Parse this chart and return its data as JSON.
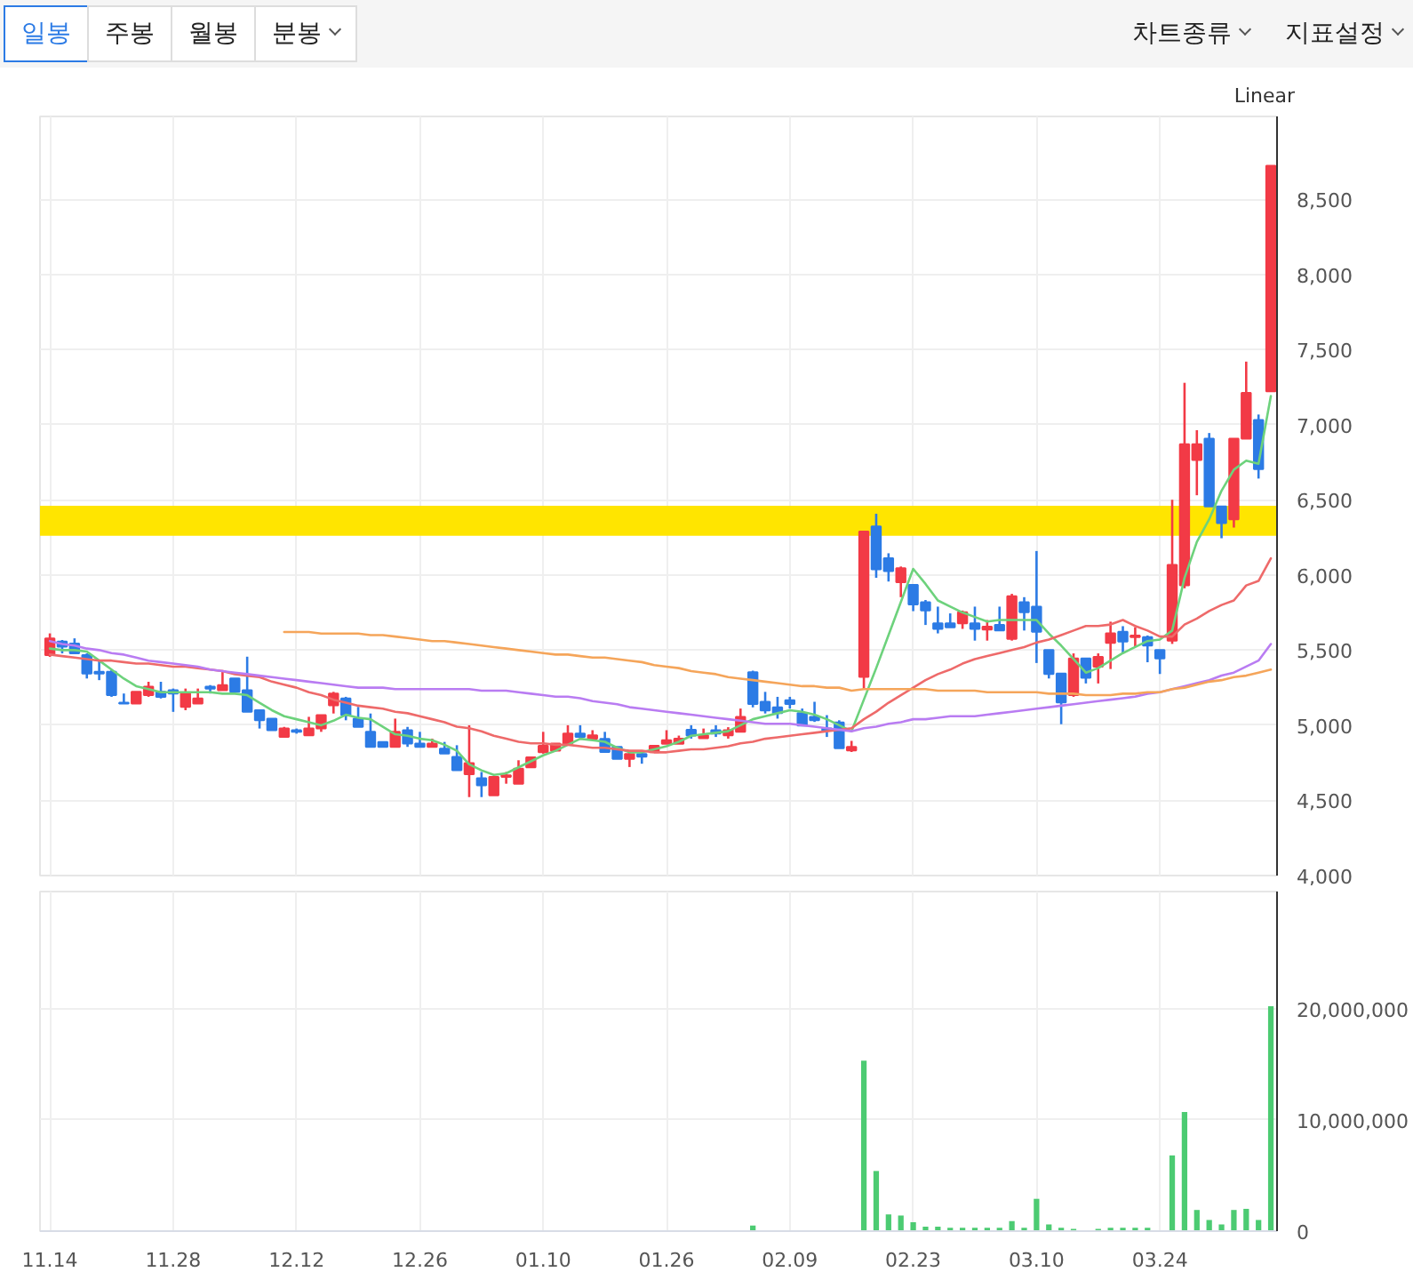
{
  "chart_data": [
    {
      "type": "candlestick",
      "annotations": [
        "일봉",
        "주봉",
        "월봉",
        "분봉",
        "차트종류",
        "지표설정",
        "Linear"
      ],
      "categories": [
        "11.14",
        null,
        null,
        null,
        null,
        null,
        null,
        null,
        null,
        null,
        "11.28",
        null,
        null,
        null,
        null,
        null,
        null,
        null,
        null,
        null,
        "12.12",
        null,
        null,
        null,
        null,
        null,
        null,
        null,
        null,
        null,
        "12.26",
        null,
        null,
        null,
        null,
        null,
        null,
        null,
        null,
        null,
        "01.10",
        null,
        null,
        null,
        null,
        null,
        null,
        null,
        null,
        null,
        "01.26",
        null,
        null,
        null,
        null,
        null,
        null,
        null,
        null,
        null,
        "02.09",
        null,
        null,
        null,
        null,
        null,
        null,
        null,
        null,
        null,
        "02.23",
        null,
        null,
        null,
        null,
        null,
        null,
        null,
        null,
        null,
        "03.10",
        null,
        null,
        null,
        null,
        null,
        null,
        null,
        null,
        null,
        "03.24",
        null,
        null,
        null,
        null,
        null,
        null,
        null,
        null,
        null
      ],
      "ohlc": [
        [
          5467,
          5611,
          5455,
          5578
        ],
        [
          5556,
          5567,
          5478,
          5522
        ],
        [
          5544,
          5578,
          5478,
          5478
        ],
        [
          5467,
          5478,
          5311,
          5344
        ],
        [
          5356,
          5433,
          5300,
          5344
        ],
        [
          5356,
          5367,
          5189,
          5200
        ],
        [
          5150,
          5211,
          5144,
          5144
        ],
        [
          5144,
          5222,
          5144,
          5222
        ],
        [
          5200,
          5289,
          5189,
          5256
        ],
        [
          5222,
          5289,
          5178,
          5189
        ],
        [
          5233,
          5244,
          5089,
          5211
        ],
        [
          5122,
          5244,
          5100,
          5211
        ],
        [
          5144,
          5244,
          5144,
          5178
        ],
        [
          5256,
          5267,
          5211,
          5244
        ],
        [
          5233,
          5367,
          5233,
          5267
        ],
        [
          5311,
          5311,
          5222,
          5222
        ],
        [
          5233,
          5456,
          5089,
          5089
        ],
        [
          5100,
          5100,
          4978,
          5033
        ],
        [
          5044,
          5044,
          4967,
          4967
        ],
        [
          4922,
          4989,
          4922,
          4978
        ],
        [
          4967,
          4978,
          4944,
          4956
        ],
        [
          4933,
          5056,
          4933,
          4978
        ],
        [
          4978,
          5067,
          4956,
          5067
        ],
        [
          5133,
          5222,
          5078,
          5211
        ],
        [
          5178,
          5189,
          5033,
          5067
        ],
        [
          5044,
          5122,
          4989,
          4989
        ],
        [
          4956,
          5078,
          4856,
          4856
        ],
        [
          4889,
          4889,
          4856,
          4856
        ],
        [
          4856,
          5044,
          4856,
          4956
        ],
        [
          4967,
          4989,
          4856,
          4878
        ],
        [
          4878,
          4956,
          4856,
          4856
        ],
        [
          4856,
          4911,
          4856,
          4878
        ],
        [
          4844,
          4889,
          4811,
          4811
        ],
        [
          4789,
          4867,
          4700,
          4700
        ],
        [
          4674,
          5000,
          4522,
          4748
        ],
        [
          4648,
          4689,
          4522,
          4600
        ],
        [
          4533,
          4656,
          4533,
          4656
        ],
        [
          4656,
          4689,
          4611,
          4667
        ],
        [
          4611,
          4767,
          4611,
          4711
        ],
        [
          4720,
          4787,
          4720,
          4787
        ],
        [
          4820,
          4956,
          4811,
          4864
        ],
        [
          4831,
          4878,
          4831,
          4878
        ],
        [
          4878,
          5000,
          4878,
          4944
        ],
        [
          4944,
          5000,
          4914,
          4922
        ],
        [
          4911,
          4967,
          4900,
          4933
        ],
        [
          4909,
          4956,
          4822,
          4822
        ],
        [
          4856,
          4856,
          4776,
          4776
        ],
        [
          4776,
          4820,
          4722,
          4809
        ],
        [
          4809,
          4820,
          4744,
          4791
        ],
        [
          4820,
          4864,
          4820,
          4864
        ],
        [
          4876,
          4967,
          4876,
          4900
        ],
        [
          4876,
          4931,
          4876,
          4911
        ],
        [
          4970,
          5000,
          4911,
          4931
        ],
        [
          4914,
          4978,
          4914,
          4933
        ],
        [
          4967,
          5000,
          4922,
          4944
        ],
        [
          4933,
          4987,
          4911,
          4967
        ],
        [
          4956,
          5111,
          4956,
          5056
        ],
        [
          5352,
          5363,
          5119,
          5141
        ],
        [
          5156,
          5222,
          5078,
          5098
        ],
        [
          5119,
          5189,
          5044,
          5081
        ],
        [
          5167,
          5189,
          5111,
          5141
        ],
        [
          5081,
          5111,
          4998,
          4998
        ],
        [
          5056,
          5156,
          5022,
          5033
        ],
        [
          4978,
          5067,
          4922,
          4967
        ],
        [
          5019,
          5033,
          4847,
          4847
        ],
        [
          4833,
          4896,
          4822,
          4856
        ],
        [
          5322,
          6289,
          5241,
          6289
        ],
        [
          6322,
          6407,
          5981,
          6037
        ],
        [
          6111,
          6144,
          5956,
          6026
        ],
        [
          5952,
          6056,
          5852,
          6044
        ],
        [
          5933,
          5933,
          5759,
          5803
        ],
        [
          5819,
          5833,
          5667,
          5763
        ],
        [
          5678,
          5789,
          5611,
          5641
        ],
        [
          5678,
          5744,
          5652,
          5652
        ],
        [
          5678,
          5763,
          5641,
          5752
        ],
        [
          5678,
          5789,
          5563,
          5641
        ],
        [
          5637,
          5700,
          5563,
          5656
        ],
        [
          5667,
          5789,
          5630,
          5630
        ],
        [
          5574,
          5874,
          5563,
          5859
        ],
        [
          5819,
          5852,
          5630,
          5752
        ],
        [
          5789,
          6159,
          5414,
          5622
        ],
        [
          5500,
          5500,
          5311,
          5341
        ],
        [
          5344,
          5344,
          5007,
          5152
        ],
        [
          5200,
          5478,
          5189,
          5444
        ],
        [
          5444,
          5444,
          5278,
          5315
        ],
        [
          5389,
          5478,
          5278,
          5455
        ],
        [
          5548,
          5689,
          5374,
          5611
        ],
        [
          5622,
          5659,
          5481,
          5556
        ],
        [
          5586,
          5652,
          5522,
          5597
        ],
        [
          5586,
          5597,
          5419,
          5530
        ],
        [
          5500,
          5500,
          5341,
          5444
        ],
        [
          5563,
          6500,
          5541,
          6067
        ],
        [
          5930,
          7278,
          5911,
          6870
        ],
        [
          6764,
          6963,
          6530,
          6870
        ],
        [
          6907,
          6944,
          6456,
          6456
        ],
        [
          6456,
          6456,
          6244,
          6344
        ],
        [
          6370,
          6907,
          6315,
          6907
        ],
        [
          6907,
          7419,
          6907,
          7211
        ],
        [
          7030,
          7067,
          6641,
          6704
        ],
        [
          7222,
          8722,
          7222,
          8722
        ]
      ],
      "colors": [
        "#f23a46",
        "#2c7be5",
        "#2c7be5",
        "#2c7be5",
        "#2c7be5",
        "#2c7be5",
        "#2c7be5",
        "#f23a46",
        "#f23a46",
        "#2c7be5",
        "#2c7be5",
        "#f23a46",
        "#f23a46",
        "#2c7be5",
        "#f23a46",
        "#2c7be5",
        "#2c7be5",
        "#2c7be5",
        "#2c7be5",
        "#f23a46",
        "#2c7be5",
        "#f23a46",
        "#f23a46",
        "#f23a46",
        "#2c7be5",
        "#2c7be5",
        "#2c7be5",
        "#2c7be5",
        "#f23a46",
        "#2c7be5",
        "#2c7be5",
        "#f23a46",
        "#2c7be5",
        "#2c7be5",
        "#f23a46",
        "#2c7be5",
        "#f23a46",
        "#f23a46",
        "#f23a46",
        "#f23a46",
        "#f23a46",
        "#f23a46",
        "#f23a46",
        "#2c7be5",
        "#f23a46",
        "#2c7be5",
        "#2c7be5",
        "#f23a46",
        "#2c7be5",
        "#f23a46",
        "#f23a46",
        "#f23a46",
        "#2c7be5",
        "#f23a46",
        "#2c7be5",
        "#f23a46",
        "#f23a46",
        "#2c7be5",
        "#2c7be5",
        "#2c7be5",
        "#2c7be5",
        "#2c7be5",
        "#2c7be5",
        "#2c7be5",
        "#2c7be5",
        "#f23a46",
        "#f23a46",
        "#2c7be5",
        "#2c7be5",
        "#f23a46",
        "#2c7be5",
        "#2c7be5",
        "#2c7be5",
        "#2c7be5",
        "#f23a46",
        "#2c7be5",
        "#f23a46",
        "#2c7be5",
        "#f23a46",
        "#2c7be5",
        "#2c7be5",
        "#2c7be5",
        "#2c7be5",
        "#f23a46",
        "#2c7be5",
        "#f23a46",
        "#f23a46",
        "#2c7be5",
        "#f23a46",
        "#2c7be5",
        "#2c7be5",
        "#f23a46",
        "#f23a46",
        "#f23a46",
        "#2c7be5",
        "#2c7be5",
        "#f23a46",
        "#f23a46",
        "#2c7be5",
        "#f23a46"
      ],
      "series": [
        {
          "type": "line",
          "color": "#6dd27c",
          "values": [
            5510,
            5500,
            5500,
            5490,
            5430,
            5370,
            5310,
            5260,
            5240,
            5220,
            5220,
            5220,
            5220,
            5220,
            5210,
            5210,
            5200,
            5150,
            5100,
            5060,
            5040,
            5020,
            5000,
            5030,
            5070,
            5050,
            5040,
            4990,
            4940,
            4930,
            4910,
            4900,
            4870,
            4830,
            4740,
            4700,
            4670,
            4680,
            4720,
            4760,
            4800,
            4830,
            4870,
            4910,
            4900,
            4890,
            4850,
            4820,
            4820,
            4840,
            4860,
            4890,
            4930,
            4940,
            4950,
            4960,
            5000,
            5040,
            5060,
            5080,
            5100,
            5090,
            5070,
            5040,
            5000,
            4960,
            5170,
            5380,
            5600,
            5820,
            6040,
            5940,
            5830,
            5790,
            5750,
            5720,
            5690,
            5700,
            5700,
            5700,
            5700,
            5610,
            5530,
            5440,
            5350,
            5380,
            5430,
            5480,
            5520,
            5560,
            5570,
            5630,
            5980,
            6220,
            6370,
            6560,
            6700,
            6760,
            6740,
            7190
          ]
        },
        {
          "type": "line",
          "color": "#ee6a6a",
          "values": [
            5470,
            5460,
            5450,
            5440,
            5430,
            5430,
            5420,
            5410,
            5410,
            5400,
            5390,
            5390,
            5380,
            5370,
            5360,
            5340,
            5330,
            5320,
            5290,
            5270,
            5250,
            5220,
            5200,
            5170,
            5150,
            5130,
            5120,
            5110,
            5090,
            5080,
            5060,
            5040,
            5020,
            4990,
            4980,
            4960,
            4930,
            4910,
            4890,
            4880,
            4880,
            4870,
            4870,
            4860,
            4850,
            4850,
            4840,
            4830,
            4830,
            4820,
            4820,
            4830,
            4840,
            4840,
            4850,
            4860,
            4880,
            4890,
            4910,
            4920,
            4930,
            4940,
            4950,
            4960,
            4970,
            4980,
            5040,
            5090,
            5150,
            5200,
            5250,
            5300,
            5340,
            5370,
            5410,
            5440,
            5460,
            5480,
            5500,
            5520,
            5550,
            5570,
            5600,
            5630,
            5660,
            5660,
            5670,
            5700,
            5660,
            5630,
            5590,
            5590,
            5670,
            5710,
            5760,
            5800,
            5830,
            5930,
            5960,
            6110
          ]
        },
        {
          "type": "line",
          "color": "#b97cf2",
          "values": [
            5560,
            5540,
            5530,
            5510,
            5500,
            5480,
            5470,
            5450,
            5430,
            5420,
            5410,
            5400,
            5390,
            5370,
            5360,
            5350,
            5340,
            5330,
            5320,
            5310,
            5300,
            5290,
            5280,
            5270,
            5260,
            5250,
            5250,
            5250,
            5240,
            5240,
            5240,
            5240,
            5240,
            5240,
            5240,
            5230,
            5230,
            5230,
            5220,
            5210,
            5200,
            5190,
            5190,
            5180,
            5160,
            5150,
            5140,
            5120,
            5110,
            5100,
            5090,
            5080,
            5070,
            5060,
            5050,
            5040,
            5030,
            5020,
            5010,
            5010,
            5010,
            5000,
            4990,
            4980,
            4970,
            4960,
            4980,
            4990,
            5010,
            5020,
            5040,
            5040,
            5050,
            5060,
            5060,
            5060,
            5070,
            5080,
            5090,
            5100,
            5110,
            5120,
            5130,
            5140,
            5150,
            5160,
            5170,
            5180,
            5190,
            5210,
            5220,
            5240,
            5260,
            5280,
            5300,
            5330,
            5350,
            5390,
            5430,
            5540
          ]
        },
        {
          "type": "line",
          "color": "#f5a55a",
          "values": [
            null,
            null,
            null,
            null,
            null,
            null,
            null,
            null,
            null,
            null,
            null,
            null,
            null,
            null,
            null,
            null,
            null,
            null,
            null,
            5620,
            5620,
            5620,
            5610,
            5610,
            5610,
            5610,
            5600,
            5600,
            5590,
            5580,
            5570,
            5560,
            5560,
            5550,
            5540,
            5530,
            5520,
            5510,
            5500,
            5490,
            5480,
            5470,
            5470,
            5460,
            5450,
            5450,
            5440,
            5430,
            5420,
            5400,
            5390,
            5380,
            5360,
            5350,
            5340,
            5320,
            5310,
            5300,
            5290,
            5280,
            5270,
            5260,
            5260,
            5250,
            5250,
            5230,
            5240,
            5240,
            5240,
            5240,
            5240,
            5240,
            5230,
            5230,
            5230,
            5230,
            5220,
            5220,
            5220,
            5220,
            5220,
            5210,
            5210,
            5210,
            5200,
            5200,
            5200,
            5210,
            5210,
            5220,
            5220,
            5240,
            5250,
            5270,
            5290,
            5300,
            5320,
            5330,
            5350,
            5370
          ]
        }
      ],
      "bands": [
        {
          "axis": "y",
          "from": 6260,
          "to": 6460,
          "color": "#ffe500"
        }
      ],
      "ylim": [
        4000,
        9050
      ],
      "yticks": [
        {
          "value": 4000,
          "label": "4,000"
        },
        {
          "value": 4500,
          "label": "4,500"
        },
        {
          "value": 5000,
          "label": "5,000"
        },
        {
          "value": 5500,
          "label": "5,500"
        },
        {
          "value": 6000,
          "label": "6,000"
        },
        {
          "value": 6500,
          "label": "6,500"
        },
        {
          "value": 7000,
          "label": "7,000"
        },
        {
          "value": 7500,
          "label": "7,500"
        },
        {
          "value": 8000,
          "label": "8,000"
        },
        {
          "value": 8500,
          "label": "8,500"
        }
      ],
      "grid": true,
      "tick_labels": "y"
    },
    {
      "type": "bar",
      "categories": [
        "11.14",
        null,
        null,
        null,
        null,
        null,
        null,
        null,
        null,
        null,
        "11.28",
        null,
        null,
        null,
        null,
        null,
        null,
        null,
        null,
        null,
        "12.12",
        null,
        null,
        null,
        null,
        null,
        null,
        null,
        null,
        null,
        "12.26",
        null,
        null,
        null,
        null,
        null,
        null,
        null,
        null,
        null,
        "01.10",
        null,
        null,
        null,
        null,
        null,
        null,
        null,
        null,
        null,
        "01.26",
        null,
        null,
        null,
        null,
        null,
        null,
        null,
        null,
        null,
        "02.09",
        null,
        null,
        null,
        null,
        null,
        null,
        null,
        null,
        null,
        "02.23",
        null,
        null,
        null,
        null,
        null,
        null,
        null,
        null,
        null,
        "03.10",
        null,
        null,
        null,
        null,
        null,
        null,
        null,
        null,
        null,
        "03.24",
        null,
        null,
        null,
        null,
        null,
        null,
        null,
        null,
        null
      ],
      "series": [
        {
          "color": "#4ccb72",
          "values": [
            0,
            0,
            0,
            0,
            0,
            0,
            0,
            0,
            0,
            0,
            0,
            0,
            0,
            0,
            0,
            0,
            0,
            0,
            0,
            0,
            0,
            0,
            0,
            0,
            0,
            0,
            0,
            0,
            0,
            0,
            0,
            0,
            0,
            0,
            0,
            0,
            0,
            0,
            0,
            0,
            0,
            0,
            0,
            0,
            0,
            0,
            0,
            0,
            0,
            0,
            0,
            0,
            0,
            0,
            0,
            0,
            0,
            500000,
            0,
            0,
            0,
            0,
            0,
            0,
            0,
            0,
            15300000,
            5400000,
            1500000,
            1400000,
            800000,
            400000,
            400000,
            300000,
            300000,
            300000,
            300000,
            300000,
            900000,
            300000,
            2900000,
            600000,
            300000,
            200000,
            0,
            200000,
            300000,
            300000,
            300000,
            300000,
            0,
            6800000,
            10700000,
            1900000,
            1000000,
            600000,
            1900000,
            2000000,
            1000000,
            20200000
          ]
        }
      ],
      "ylim": [
        0,
        30500000
      ],
      "yticks": [
        {
          "value": 0,
          "label": "0"
        },
        {
          "value": 10000000,
          "label": "10,000,000"
        },
        {
          "value": 20000000,
          "label": "20,000,000"
        }
      ],
      "grid": true
    }
  ]
}
